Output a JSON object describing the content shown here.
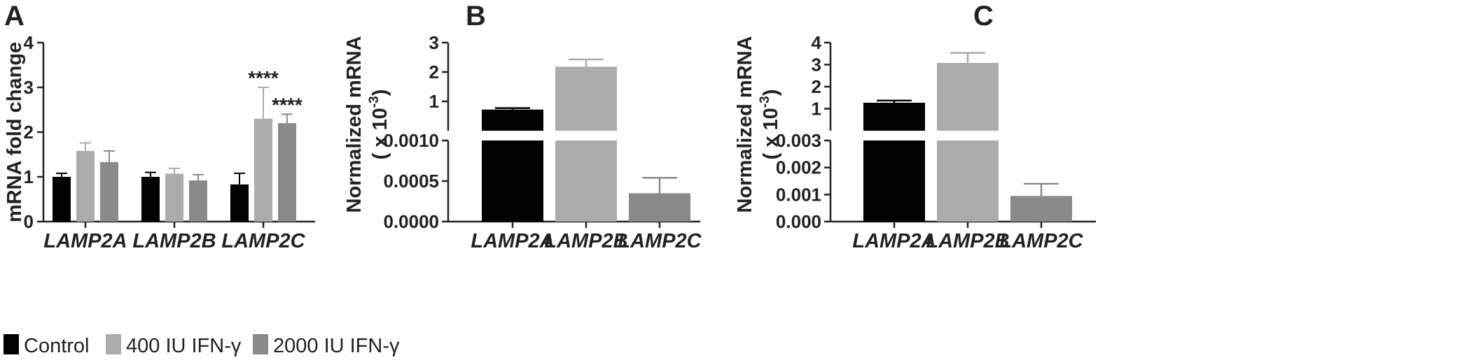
{
  "panels": [
    {
      "letter": "A"
    },
    {
      "letter": "B"
    },
    {
      "letter": "C"
    }
  ],
  "legend": [
    {
      "label": "Control",
      "color": "#000000"
    },
    {
      "label": "400 IU IFN-γ",
      "color": "#ababab"
    },
    {
      "label": "2000 IU IFN-γ",
      "color": "#8a8a8a"
    }
  ],
  "chart_data": [
    {
      "type": "bar",
      "panel": "A",
      "ylabel": "mRNA fold change",
      "ylim": [
        0,
        4
      ],
      "yticks": [
        "0",
        "1",
        "2",
        "3",
        "4"
      ],
      "categories": [
        "LAMP2A",
        "LAMP2B",
        "LAMP2C"
      ],
      "series": [
        {
          "name": "Control",
          "color": "#000000",
          "values": [
            1.0,
            1.0,
            0.83
          ],
          "errors": [
            0.08,
            0.1,
            0.25
          ]
        },
        {
          "name": "400 IU IFN-γ",
          "color": "#ababab",
          "values": [
            1.58,
            1.07,
            2.3
          ],
          "errors": [
            0.18,
            0.12,
            0.7
          ]
        },
        {
          "name": "2000 IU IFN-γ",
          "color": "#8a8a8a",
          "values": [
            1.33,
            0.92,
            2.2
          ],
          "errors": [
            0.25,
            0.13,
            0.2
          ]
        }
      ],
      "annotations": [
        {
          "category": "LAMP2C",
          "series": "400 IU IFN-γ",
          "text": "****"
        },
        {
          "category": "LAMP2C",
          "series": "2000 IU IFN-γ",
          "text": "****"
        }
      ],
      "legend_position": "bottom-left",
      "grid": false
    },
    {
      "type": "bar",
      "panel": "B",
      "ylabel": "Normalized mRNA",
      "ylabel_unit": "( x 10",
      "ylabel_exp": "-3",
      "ylabel_close": ")",
      "broken_axis": true,
      "ylim_lower": [
        0,
        0.001
      ],
      "ylim_upper": [
        0.0001,
        3
      ],
      "yticks_lower": [
        "0.0000",
        "0.0005",
        "0.0010"
      ],
      "yticks_upper": [
        "1",
        "2",
        "3"
      ],
      "categories": [
        "LAMP2A",
        "LAMP2B",
        "LAMP2C"
      ],
      "colors": [
        "#000000",
        "#ababab",
        "#8a8a8a"
      ],
      "values": [
        0.72,
        2.18,
        0.00035
      ],
      "errors": [
        0.05,
        0.25,
        0.00019
      ],
      "grid": false
    },
    {
      "type": "bar",
      "panel": "C",
      "ylabel": "Normalized mRNA",
      "ylabel_unit": "( x 10",
      "ylabel_exp": "-3",
      "ylabel_close": ")",
      "broken_axis": true,
      "ylim_lower": [
        0,
        0.003
      ],
      "ylim_upper": [
        0.0001,
        4
      ],
      "yticks_lower": [
        "0.000",
        "0.001",
        "0.002",
        "0.003"
      ],
      "yticks_upper": [
        "1",
        "2",
        "3",
        "4"
      ],
      "categories": [
        "LAMP2A",
        "LAMP2B",
        "LAMP2C"
      ],
      "colors": [
        "#000000",
        "#ababab",
        "#8a8a8a"
      ],
      "values": [
        1.27,
        3.08,
        0.00095
      ],
      "errors": [
        0.1,
        0.45,
        0.00045
      ],
      "grid": false
    }
  ]
}
